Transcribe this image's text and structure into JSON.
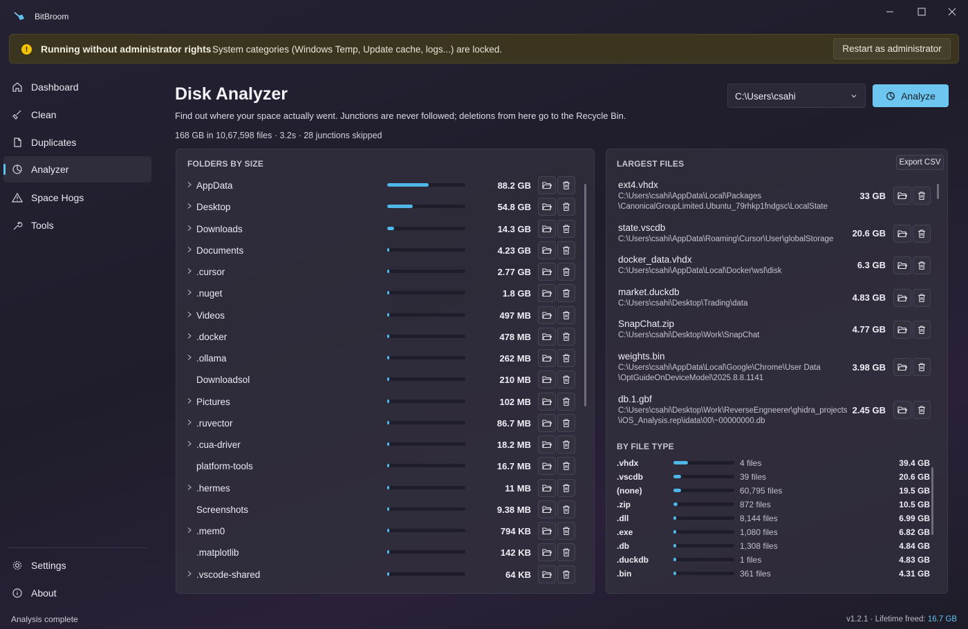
{
  "app": {
    "title": "BitBroom"
  },
  "banner": {
    "title": "Running without administrator rights",
    "message": "System categories (Windows Temp, Update cache, logs...) are locked.",
    "action": "Restart as administrator"
  },
  "nav": {
    "items": [
      {
        "label": "Dashboard",
        "icon": "home-icon"
      },
      {
        "label": "Clean",
        "icon": "broom-icon"
      },
      {
        "label": "Duplicates",
        "icon": "copy-icon"
      },
      {
        "label": "Analyzer",
        "icon": "pie-icon",
        "active": true
      },
      {
        "label": "Space Hogs",
        "icon": "warning-icon"
      },
      {
        "label": "Tools",
        "icon": "wrench-icon"
      }
    ],
    "footer": [
      {
        "label": "Settings",
        "icon": "gear-icon"
      },
      {
        "label": "About",
        "icon": "info-icon"
      }
    ]
  },
  "main": {
    "title": "Disk Analyzer",
    "subtitle": "Find out where your space actually went. Junctions are never followed; deletions from here go to the Recycle Bin.",
    "stats": "168 GB in 10,67,598 files · 3.2s · 28 junctions skipped",
    "path": "C:\\Users\\csahi",
    "analyze_label": "Analyze"
  },
  "folders": {
    "heading": "FOLDERS BY SIZE",
    "rows": [
      {
        "name": "AppData",
        "size": "88.2 GB",
        "fraction": 0.53,
        "expandable": true
      },
      {
        "name": "Desktop",
        "size": "54.8 GB",
        "fraction": 0.33,
        "expandable": true
      },
      {
        "name": "Downloads",
        "size": "14.3 GB",
        "fraction": 0.085,
        "expandable": true
      },
      {
        "name": "Documents",
        "size": "4.23 GB",
        "fraction": 0.025,
        "expandable": true
      },
      {
        "name": ".cursor",
        "size": "2.77 GB",
        "fraction": 0.017,
        "expandable": true
      },
      {
        "name": ".nuget",
        "size": "1.8 GB",
        "fraction": 0.011,
        "expandable": true
      },
      {
        "name": "Videos",
        "size": "497 MB",
        "fraction": 0.005,
        "expandable": true
      },
      {
        "name": ".docker",
        "size": "478 MB",
        "fraction": 0.005,
        "expandable": true
      },
      {
        "name": ".ollama",
        "size": "262 MB",
        "fraction": 0.004,
        "expandable": true
      },
      {
        "name": "Downloadsol",
        "size": "210 MB",
        "fraction": 0.004,
        "expandable": false
      },
      {
        "name": "Pictures",
        "size": "102 MB",
        "fraction": 0.003,
        "expandable": true
      },
      {
        "name": ".ruvector",
        "size": "86.7 MB",
        "fraction": 0.003,
        "expandable": true
      },
      {
        "name": ".cua-driver",
        "size": "18.2 MB",
        "fraction": 0.002,
        "expandable": true
      },
      {
        "name": "platform-tools",
        "size": "16.7 MB",
        "fraction": 0.002,
        "expandable": false
      },
      {
        "name": ".hermes",
        "size": "11 MB",
        "fraction": 0.002,
        "expandable": true
      },
      {
        "name": "Screenshots",
        "size": "9.38 MB",
        "fraction": 0.002,
        "expandable": false
      },
      {
        "name": ".mem0",
        "size": "794 KB",
        "fraction": 0.002,
        "expandable": true
      },
      {
        "name": ".matplotlib",
        "size": "142 KB",
        "fraction": 0.002,
        "expandable": false
      },
      {
        "name": ".vscode-shared",
        "size": "64 KB",
        "fraction": 0.002,
        "expandable": true
      }
    ]
  },
  "largest": {
    "heading": "LARGEST FILES",
    "export_label": "Export CSV",
    "files": [
      {
        "name": "ext4.vhdx",
        "path": "C:\\Users\\csahi\\AppData\\Local\\Packages\n\\CanonicalGroupLimited.Ubuntu_79rhkp1fndgsc\\LocalState",
        "size": "33 GB"
      },
      {
        "name": "state.vscdb",
        "path": "C:\\Users\\csahi\\AppData\\Roaming\\Cursor\\User\\globalStorage",
        "size": "20.6 GB"
      },
      {
        "name": "docker_data.vhdx",
        "path": "C:\\Users\\csahi\\AppData\\Local\\Docker\\wsl\\disk",
        "size": "6.3 GB"
      },
      {
        "name": "market.duckdb",
        "path": "C:\\Users\\csahi\\Desktop\\Trading\\data",
        "size": "4.83 GB"
      },
      {
        "name": "SnapChat.zip",
        "path": "C:\\Users\\csahi\\Desktop\\Work\\SnapChat",
        "size": "4.77 GB"
      },
      {
        "name": "weights.bin",
        "path": "C:\\Users\\csahi\\AppData\\Local\\Google\\Chrome\\User Data\n\\OptGuideOnDeviceModel\\2025.8.8.1141",
        "size": "3.98 GB"
      },
      {
        "name": "db.1.gbf",
        "path": "C:\\Users\\csahi\\Desktop\\Work\\ReverseEngneerer\\ghidra_projects\n\\iOS_Analysis.rep\\idata\\00\\~00000000.db",
        "size": "2.45 GB"
      }
    ]
  },
  "types": {
    "heading": "BY FILE TYPE",
    "rows": [
      {
        "ext": ".vhdx",
        "count": "4 files",
        "size": "39.4 GB",
        "fraction": 0.24
      },
      {
        "ext": ".vscdb",
        "count": "39 files",
        "size": "20.6 GB",
        "fraction": 0.125
      },
      {
        "ext": "(none)",
        "count": "60,795 files",
        "size": "19.5 GB",
        "fraction": 0.12
      },
      {
        "ext": ".zip",
        "count": "872 files",
        "size": "10.5 GB",
        "fraction": 0.065
      },
      {
        "ext": ".dll",
        "count": "8,144 files",
        "size": "6.99 GB",
        "fraction": 0.042
      },
      {
        "ext": ".exe",
        "count": "1,080 files",
        "size": "6.82 GB",
        "fraction": 0.041
      },
      {
        "ext": ".db",
        "count": "1,308 files",
        "size": "4.84 GB",
        "fraction": 0.03
      },
      {
        "ext": ".duckdb",
        "count": "1 files",
        "size": "4.83 GB",
        "fraction": 0.03
      },
      {
        "ext": ".bin",
        "count": "361 files",
        "size": "4.31 GB",
        "fraction": 0.027
      }
    ]
  },
  "status": {
    "left": "Analysis complete",
    "version": "v1.2.1",
    "freed_label": "Lifetime freed:",
    "freed_value": "16.7 GB"
  },
  "colors": {
    "accent": "#5fc3f0",
    "bar": "#4fb8e8",
    "warning": "#f5c400"
  }
}
